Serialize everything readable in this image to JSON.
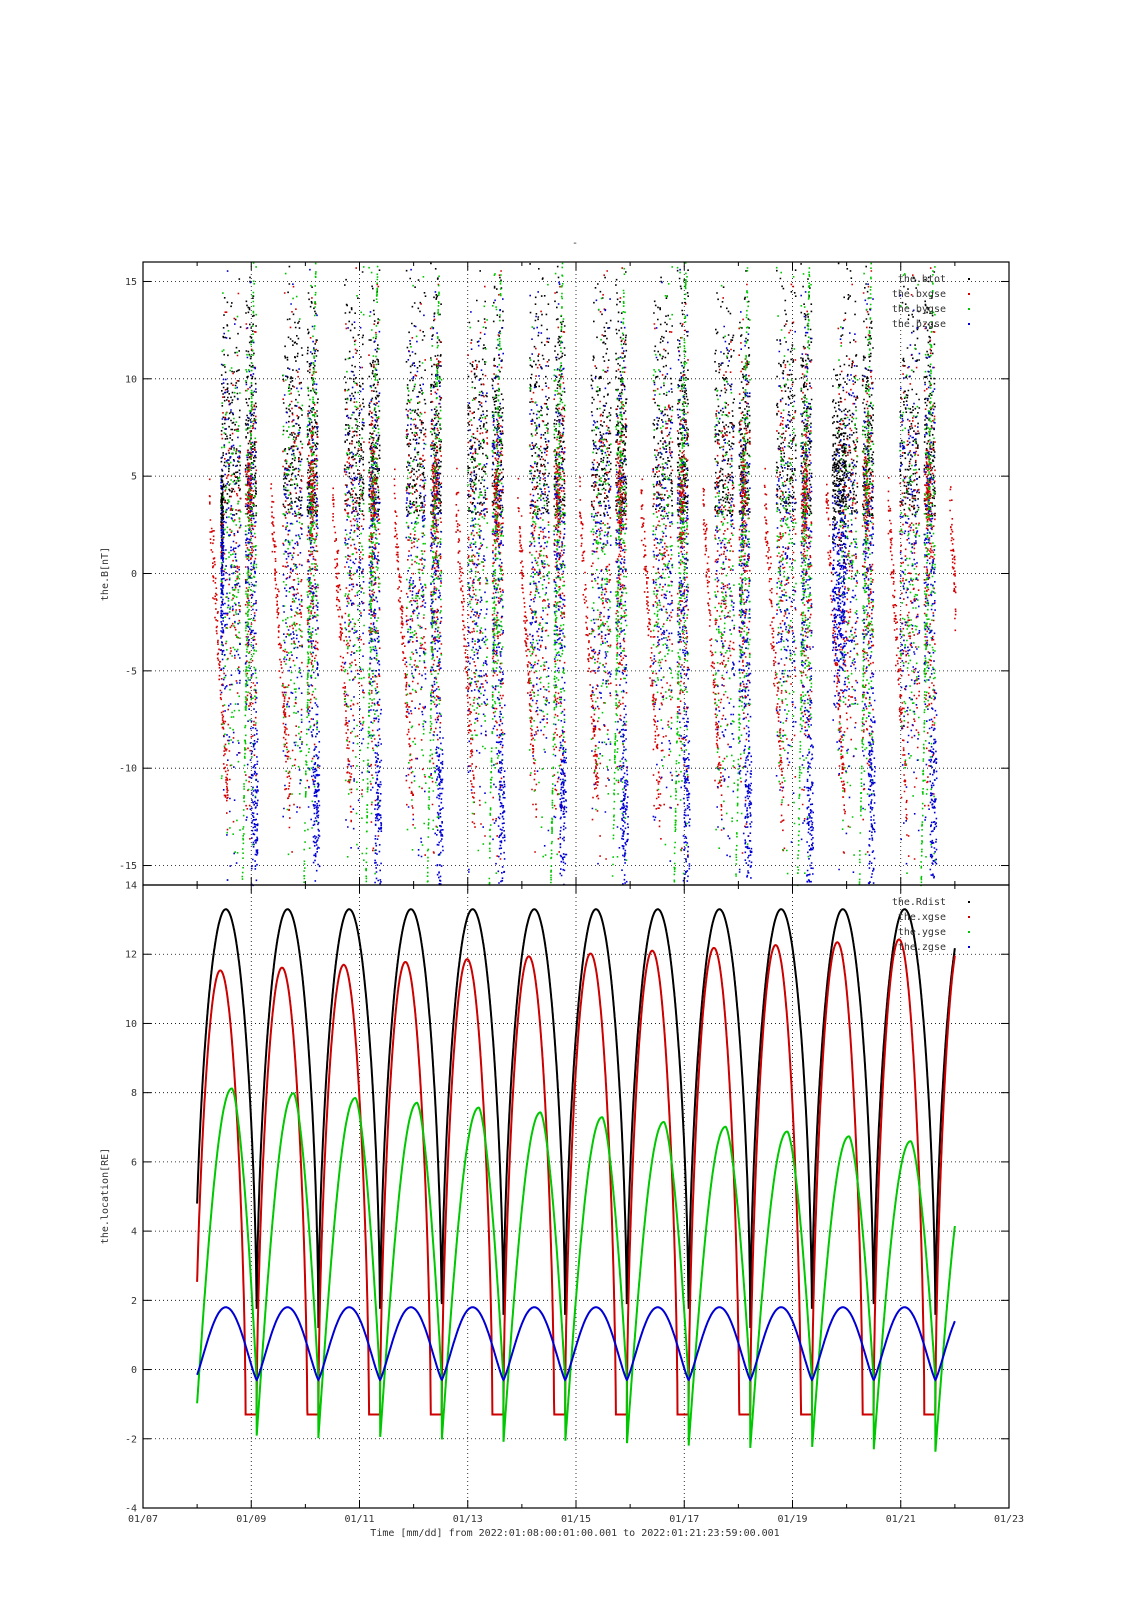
{
  "figure": {
    "title": "-",
    "xlabel": "Time [mm/dd]  from 2022:01:08:00:01:00.001  to  2022:01:21:23:59:00.001",
    "x_ticks": [
      "01/07",
      "01/09",
      "01/11",
      "01/13",
      "01/15",
      "01/17",
      "01/19",
      "01/21",
      "01/23"
    ],
    "x_tick_days": [
      7,
      9,
      11,
      13,
      15,
      17,
      19,
      21,
      23
    ],
    "x_range_days": [
      7,
      23
    ],
    "data_start_day": 8.0,
    "data_end_day": 22.0,
    "grid": true
  },
  "chart_data": [
    {
      "type": "scatter",
      "ylabel": "the.B[nT]",
      "ylim": [
        -16,
        16
      ],
      "y_ticks": [
        -15,
        -10,
        -5,
        0,
        5,
        10,
        15
      ],
      "legend_position": "top-right",
      "series": [
        {
          "name": "the.btot",
          "color": "#000000"
        },
        {
          "name": "the.bxgse",
          "color": "#d40000"
        },
        {
          "name": "the.bygse",
          "color": "#00c800"
        },
        {
          "name": "the.bzgse",
          "color": "#0000d4"
        }
      ],
      "note": "dense point cloud; values scattered between -16 and 16 nT"
    },
    {
      "type": "line",
      "ylabel": "the.location[RE]",
      "ylim": [
        -4,
        14
      ],
      "y_ticks": [
        -4,
        -2,
        0,
        2,
        4,
        6,
        8,
        10,
        12,
        14
      ],
      "legend_position": "top-right",
      "orbit_period_days": 1.14,
      "series": [
        {
          "name": "the.Rdist",
          "color": "#000000",
          "min": 1.2,
          "max": 13.3
        },
        {
          "name": "the.xgse",
          "color": "#cc0000",
          "min": -1.3,
          "max_first": 11.5,
          "max_last": 12.5
        },
        {
          "name": "the.ygse",
          "color": "#00c800",
          "min_first": -1.9,
          "min_last": -2.4,
          "max_first": 8.2,
          "max_last": 6.5
        },
        {
          "name": "the.zgse",
          "color": "#0000d4",
          "min": -0.3,
          "max": 1.8
        }
      ]
    }
  ]
}
